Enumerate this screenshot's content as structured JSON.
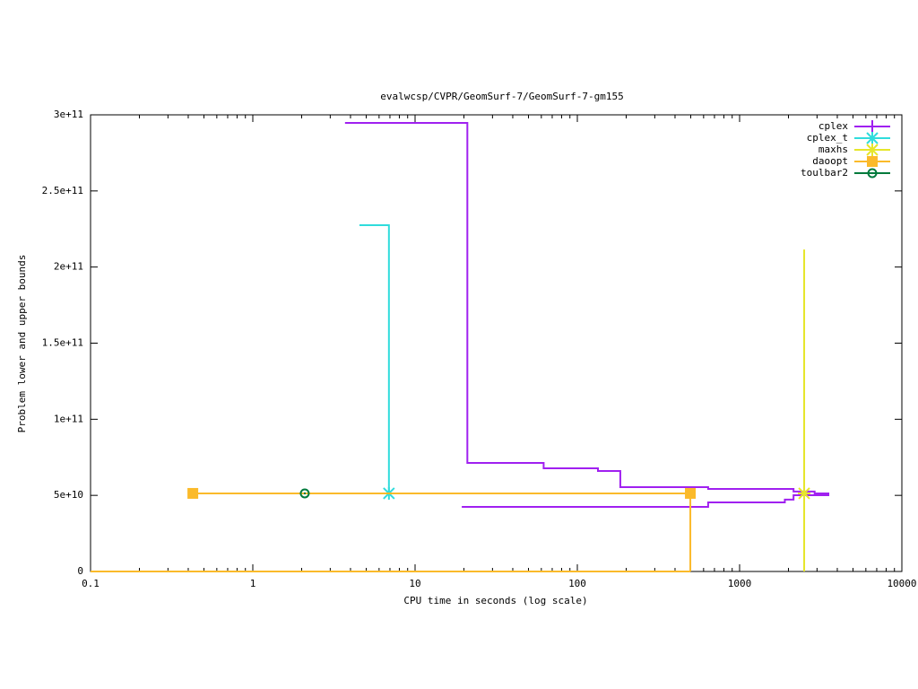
{
  "chart_data": {
    "type": "line",
    "title": "evalwcsp/CVPR/GeomSurf-7/GeomSurf-7-gm155",
    "x_label": "CPU time in seconds (log scale)",
    "y_label": "Problem lower and upper bounds",
    "xscale": "log",
    "xlim": [
      0.1,
      10000
    ],
    "xticks": [
      0.1,
      1,
      10,
      100,
      1000,
      10000
    ],
    "ylim": [
      0,
      300000000000
    ],
    "yticks": [
      0,
      {
        "value": 50000000000,
        "label": "5e+10"
      },
      {
        "value": 100000000000,
        "label": "1e+11"
      },
      {
        "value": 150000000000,
        "label": "1.5e+11"
      },
      {
        "value": 200000000000,
        "label": "2e+11"
      },
      {
        "value": 250000000000,
        "label": "2.5e+11"
      },
      {
        "value": 300000000000,
        "label": "3e+11"
      }
    ],
    "legend": "top-right",
    "series": [
      {
        "name": "cplex",
        "color": "#a020f0",
        "marker": "plus",
        "lines": [
          {
            "x": [
              3.7,
              21,
              21,
              62,
              62,
              134,
              134,
              184,
              184,
              640,
              640,
              2150,
              2150,
              2900,
              2900,
              3570
            ],
            "values": [
              294700000000,
              294700000000,
              71300000000,
              71300000000,
              67800000000,
              67800000000,
              66000000000,
              66000000000,
              55400000000,
              55400000000,
              54200000000,
              54200000000,
              52500000000,
              52500000000,
              51300000000,
              51300000000
            ]
          },
          {
            "x": [
              19.4,
              640,
              640,
              1900,
              1900,
              2150,
              2150,
              3570
            ],
            "values": [
              42400000000,
              42400000000,
              45400000000,
              45400000000,
              47200000000,
              47200000000,
              50100000000,
              50100000000
            ]
          }
        ],
        "points": {
          "x": [],
          "values": []
        }
      },
      {
        "name": "cplex_t",
        "color": "#30dcdc",
        "marker": "star",
        "lines": [
          {
            "x": [
              4.54,
              6.9,
              6.9
            ],
            "values": [
              227500000000,
              227500000000,
              51300000000
            ]
          }
        ],
        "points": {
          "x": [
            6.9
          ],
          "values": [
            51300000000
          ]
        }
      },
      {
        "name": "maxhs",
        "color": "#e6e62a",
        "marker": "star",
        "lines": [
          {
            "x": [
              2500,
              2500
            ],
            "values": [
              211500000000,
              0
            ]
          }
        ],
        "points": {
          "x": [
            2500
          ],
          "values": [
            51300000000
          ]
        }
      },
      {
        "name": "daoopt",
        "color": "#fbba2a",
        "marker": "square",
        "lines": [
          {
            "x": [
              0.427,
              497,
              497
            ],
            "values": [
              51300000000,
              51300000000,
              0
            ]
          },
          {
            "x": [
              0.1,
              497
            ],
            "values": [
              0,
              0
            ]
          }
        ],
        "points": {
          "x": [
            0.427,
            497
          ],
          "values": [
            51300000000,
            51300000000
          ]
        }
      },
      {
        "name": "toulbar2",
        "color": "#007a3c",
        "marker": "circle",
        "lines": [],
        "points": {
          "x": [
            2.09
          ],
          "values": [
            51300000000
          ]
        }
      }
    ]
  }
}
